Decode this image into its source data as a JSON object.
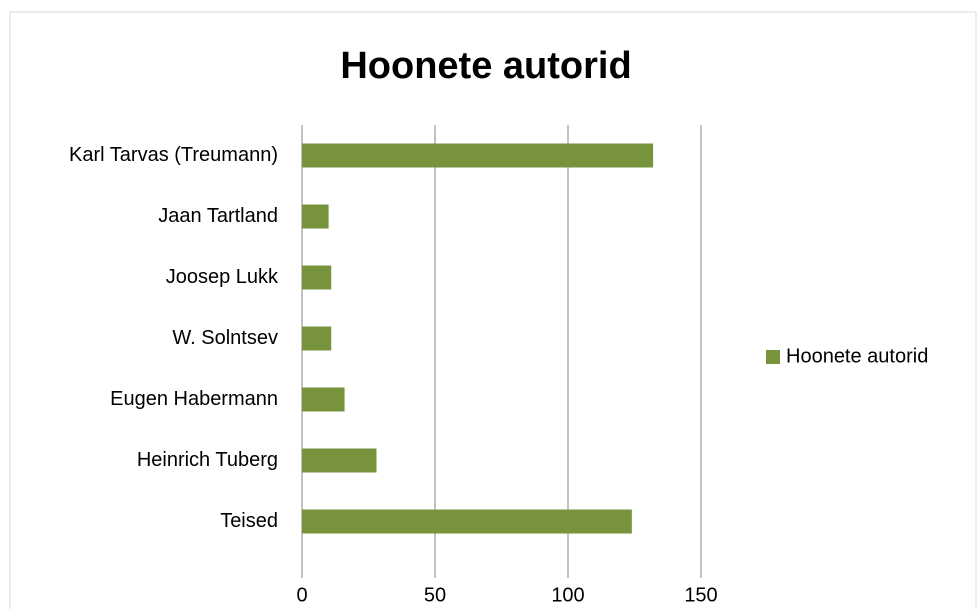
{
  "chart_data": {
    "type": "bar",
    "orientation": "horizontal",
    "title": "Hoonete autorid",
    "categories": [
      "Karl Tarvas (Treumann)",
      "Jaan Tartland",
      "Joosep Lukk",
      "W. Solntsev",
      "Eugen Habermann",
      "Heinrich Tuberg",
      "Teised"
    ],
    "series": [
      {
        "name": "Hoonete autorid",
        "color": "#77933c",
        "values": [
          132,
          10,
          11,
          11,
          16,
          28,
          124
        ]
      }
    ],
    "xlim": [
      0,
      150
    ],
    "xticks": [
      0,
      50,
      100,
      150
    ],
    "grid": true,
    "legend": "right"
  }
}
